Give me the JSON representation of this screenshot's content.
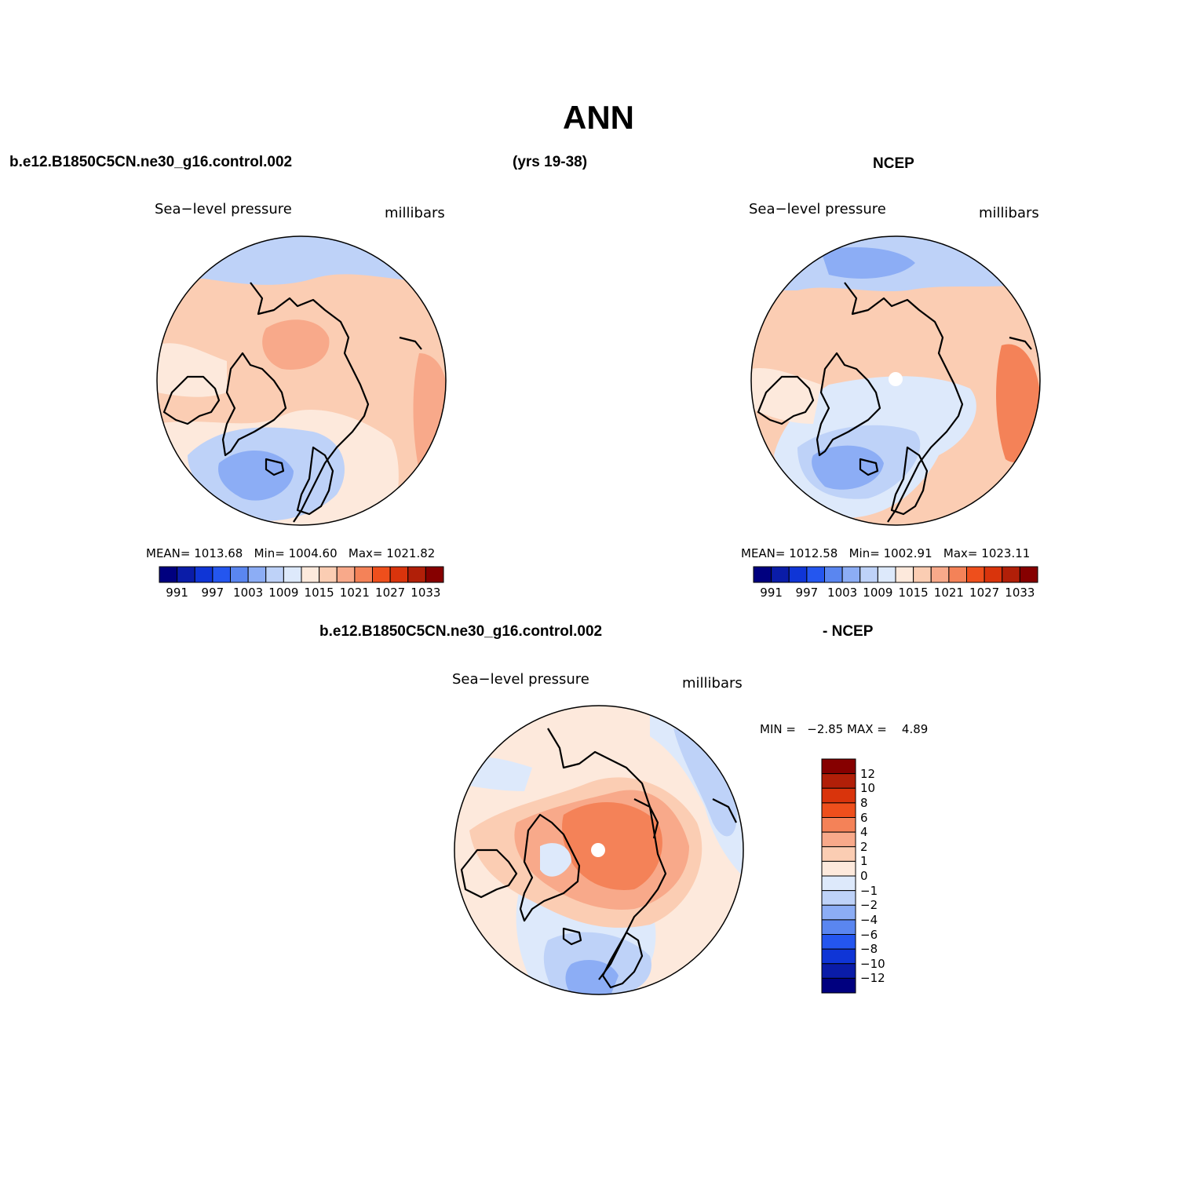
{
  "title": "ANN",
  "case_label": "b.e12.B1850C5CN.ne30_g16.control.002",
  "years_label": "(yrs 19-38)",
  "obs_label": "NCEP",
  "diff_case_label": "b.e12.B1850C5CN.ne30_g16.control.002",
  "diff_obs_label": "- NCEP",
  "colors": {
    "pressure_scale": [
      "#00007f",
      "#0a1ca8",
      "#0f35d6",
      "#2456ef",
      "#5a86f0",
      "#8cadf5",
      "#bed2f8",
      "#dde9fb",
      "#fde9dc",
      "#fbcdb3",
      "#f8a98a",
      "#f48258",
      "#ee4f1c",
      "#d9340c",
      "#b11f08",
      "#860000"
    ],
    "diff_scale": [
      "#00007f",
      "#0a1ca8",
      "#0f35d6",
      "#2456ef",
      "#5a86f0",
      "#8cadf5",
      "#bed2f8",
      "#dde9fb",
      "#fde9dc",
      "#fbcdb3",
      "#f8a98a",
      "#f48258",
      "#ee4f1c",
      "#d9340c",
      "#b11f08",
      "#860000"
    ]
  },
  "panels": [
    {
      "variable": "Sea−level pressure",
      "units": "millibars",
      "mean_label": "MEAN=",
      "mean": "1013.68",
      "min_label": "Min=",
      "min": "1004.60",
      "max_label": "Max=",
      "max": "1021.82",
      "ticks": [
        "991",
        "997",
        "1003",
        "1009",
        "1015",
        "1021",
        "1027",
        "1033"
      ]
    },
    {
      "variable": "Sea−level pressure",
      "units": "millibars",
      "mean_label": "MEAN=",
      "mean": "1012.58",
      "min_label": "Min=",
      "min": "1002.91",
      "max_label": "Max=",
      "max": "1023.11",
      "ticks": [
        "991",
        "997",
        "1003",
        "1009",
        "1015",
        "1021",
        "1027",
        "1033"
      ]
    }
  ],
  "diff_panel": {
    "variable": "Sea−level pressure",
    "units": "millibars",
    "min_label": "MIN =",
    "min": "−2.85",
    "max_label": "MAX =",
    "max": "4.89",
    "ticks": [
      "12",
      "10",
      "8",
      "6",
      "4",
      "2",
      "1",
      "0",
      "−1",
      "−2",
      "−4",
      "−6",
      "−8",
      "−10",
      "−12"
    ]
  }
}
